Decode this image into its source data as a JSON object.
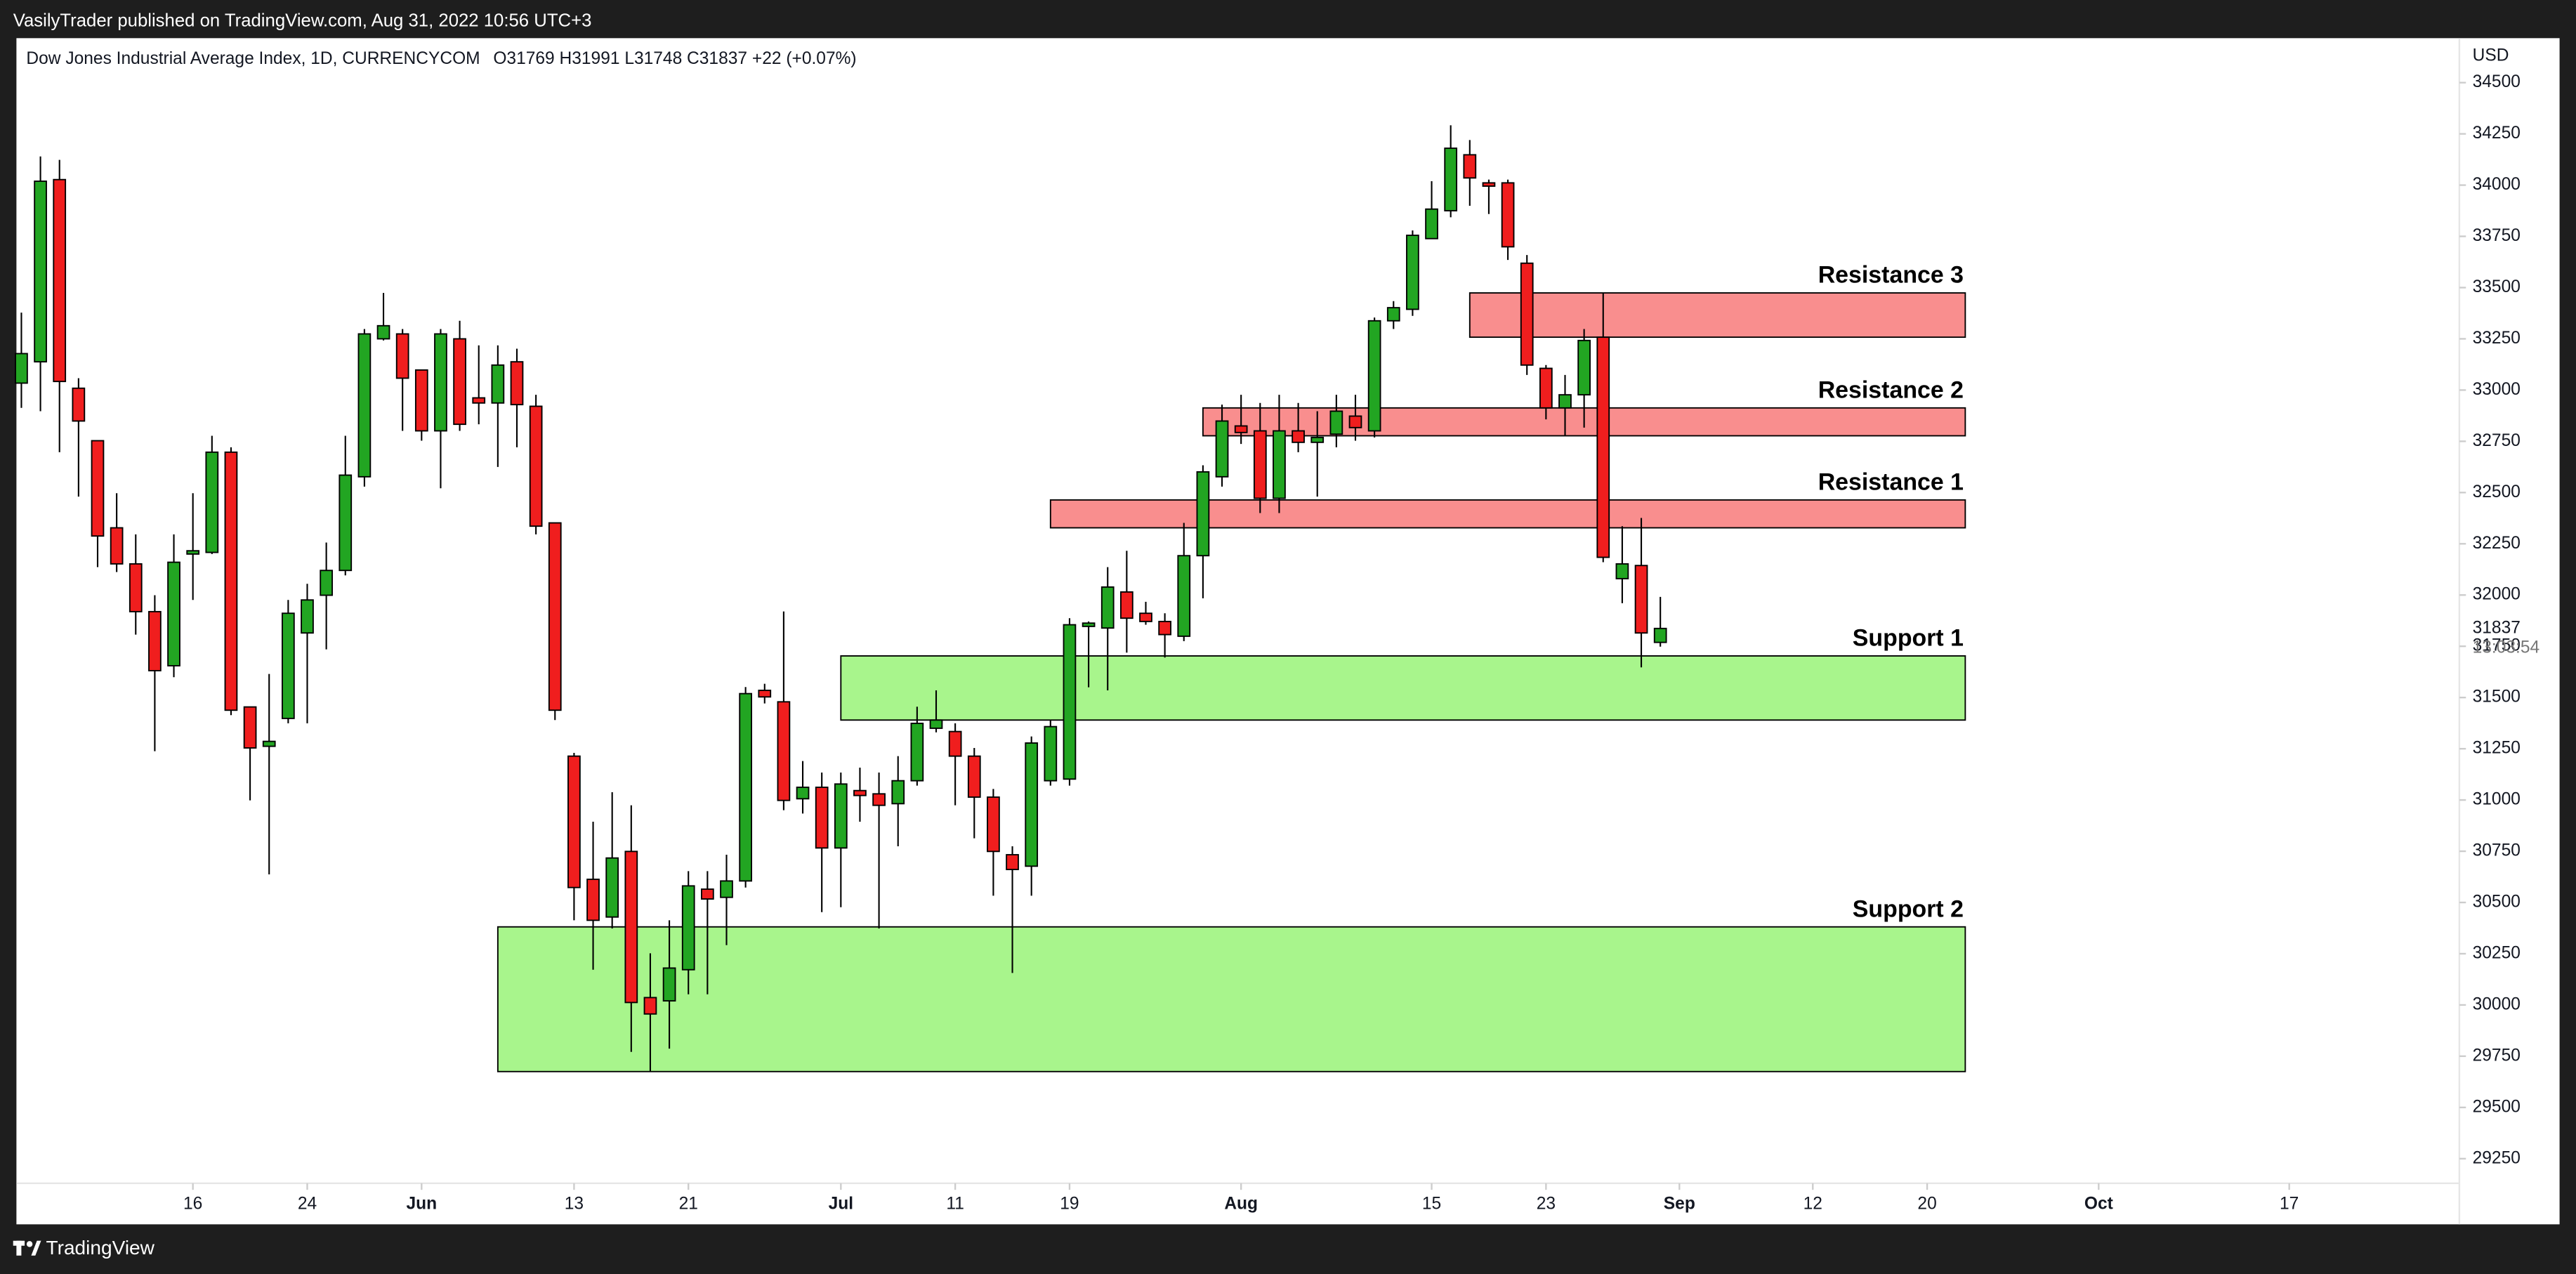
{
  "header": "VasilyTrader published on TradingView.com, Aug 31, 2022 10:56 UTC+3",
  "footer": "TradingView",
  "chart_data": {
    "type": "candlestick",
    "symbol": "Dow Jones Industrial Average Index, 1D, CURRENCYCOM",
    "legend": "O31769  H31991  L31748  C31837  +22 (+0.07%)",
    "currency": "USD",
    "last_price": 31837,
    "countdown": "13:03:54",
    "up_color": "#22a522",
    "down_color": "#f01e1e",
    "x": [
      0,
      1,
      2,
      3,
      4,
      5,
      6,
      7,
      8,
      9,
      10,
      11,
      12,
      13,
      14,
      15,
      16,
      17,
      18,
      19,
      20,
      21,
      22,
      23,
      24,
      25,
      26,
      27,
      28,
      29,
      30,
      31,
      32,
      33,
      34,
      35,
      36,
      37,
      38,
      39,
      40,
      41,
      42,
      43,
      44,
      45,
      46,
      47,
      48,
      49,
      50,
      51,
      52,
      53,
      54,
      55,
      56,
      57,
      58,
      59,
      60,
      61,
      62,
      63,
      64,
      65,
      66,
      67,
      68,
      69,
      70,
      71,
      72,
      73,
      74,
      75,
      76,
      77,
      78,
      79,
      80,
      81,
      82,
      83,
      84,
      85,
      86
    ],
    "open": [
      33034,
      33138,
      34027,
      33009,
      32753,
      32328,
      32152,
      31919,
      31655,
      32200,
      32208,
      32697,
      31454,
      31262,
      31398,
      31815,
      31999,
      32120,
      32577,
      33250,
      33274,
      33098,
      32801,
      33250,
      32962,
      32937,
      33138,
      32921,
      32352,
      31214,
      30613,
      30429,
      30749,
      30036,
      30020,
      30172,
      30565,
      30525,
      30605,
      31535,
      31479,
      31006,
      31062,
      30766,
      31046,
      31030,
      30982,
      31094,
      31350,
      31334,
      31214,
      31014,
      30733,
      30677,
      31094,
      31102,
      31847,
      31839,
      32015,
      31911,
      31871,
      31799,
      32192,
      32577,
      32825,
      32801,
      32472,
      32801,
      32745,
      32785,
      32873,
      32801,
      33338,
      33394,
      33739,
      33875,
      34148,
      34011,
      34011,
      33619,
      33106,
      32913,
      32977,
      33258,
      32080,
      32144,
      31769
    ],
    "high": [
      33378,
      34140,
      34123,
      33058,
      32753,
      32497,
      32296,
      31999,
      32296,
      32497,
      32777,
      32721,
      31454,
      31615,
      31976,
      32055,
      32256,
      32777,
      33298,
      33474,
      33298,
      33098,
      33298,
      33338,
      33218,
      33218,
      33202,
      32977,
      32352,
      31230,
      30894,
      31038,
      30974,
      30252,
      30413,
      30653,
      30653,
      30733,
      31551,
      31567,
      31920,
      31190,
      31134,
      31134,
      31158,
      31134,
      31214,
      31455,
      31535,
      31374,
      31254,
      31054,
      30774,
      31310,
      31390,
      31887,
      31871,
      32136,
      32216,
      31967,
      31911,
      32352,
      32633,
      32929,
      32977,
      32937,
      32977,
      32937,
      32897,
      32977,
      32977,
      33354,
      33434,
      33779,
      34019,
      34292,
      34220,
      34027,
      34027,
      33659,
      33122,
      33074,
      33298,
      33474,
      32336,
      32376,
      31991
    ],
    "low": [
      32913,
      32897,
      32697,
      32480,
      32136,
      32112,
      31807,
      31238,
      31599,
      31976,
      32200,
      31414,
      30998,
      30637,
      31374,
      31374,
      31735,
      32096,
      32529,
      33242,
      32801,
      32753,
      32521,
      32801,
      32833,
      32625,
      32721,
      32296,
      31390,
      30413,
      30172,
      30373,
      29771,
      29675,
      29787,
      30052,
      30052,
      30292,
      30573,
      31471,
      30950,
      30934,
      30453,
      30477,
      30894,
      30373,
      30774,
      31070,
      31330,
      30974,
      30813,
      30533,
      30156,
      30533,
      31070,
      31070,
      31550,
      31535,
      31719,
      31855,
      31695,
      31775,
      31984,
      32529,
      32737,
      32400,
      32400,
      32697,
      32480,
      32721,
      32753,
      32769,
      33298,
      33362,
      33739,
      33843,
      33899,
      33859,
      33635,
      33074,
      32857,
      32777,
      32817,
      32160,
      31960,
      31647,
      31748
    ],
    "close": [
      33178,
      34019,
      33042,
      32849,
      32288,
      32152,
      31919,
      31631,
      32160,
      32216,
      32697,
      31438,
      31254,
      31286,
      31911,
      31976,
      32120,
      32585,
      33274,
      33314,
      33058,
      32801,
      33274,
      32833,
      32937,
      33122,
      32929,
      32336,
      31438,
      30573,
      30413,
      30717,
      30012,
      29956,
      30180,
      30581,
      30517,
      30605,
      31519,
      31503,
      30998,
      31062,
      30766,
      31078,
      31022,
      30974,
      31094,
      31374,
      31390,
      31214,
      31014,
      30749,
      30661,
      31278,
      31358,
      31855,
      31863,
      32039,
      31887,
      31871,
      31807,
      32192,
      32601,
      32849,
      32793,
      32472,
      32801,
      32745,
      32769,
      32897,
      32817,
      33338,
      33402,
      33755,
      33883,
      34180,
      34035,
      33995,
      33699,
      33122,
      32913,
      32977,
      33242,
      32184,
      32152,
      31815,
      31837
    ],
    "zones": [
      {
        "label": "Resistance 3",
        "low": 33258,
        "high": 33474,
        "x_start": 76,
        "x_end": 102,
        "color": "#f98e8e"
      },
      {
        "label": "Resistance 2",
        "low": 32777,
        "high": 32913,
        "x_start": 62,
        "x_end": 102,
        "color": "#f98e8e"
      },
      {
        "label": "Resistance 1",
        "low": 32328,
        "high": 32464,
        "x_start": 54,
        "x_end": 102,
        "color": "#f98e8e"
      },
      {
        "label": "Support 1",
        "low": 31390,
        "high": 31703,
        "x_start": 43,
        "x_end": 102,
        "color": "#a8f58c"
      },
      {
        "label": "Support 2",
        "low": 29675,
        "high": 30381,
        "x_start": 25,
        "x_end": 102,
        "color": "#a8f58c"
      }
    ],
    "xlim": [
      -0.26,
      127.84
    ],
    "xticks": [
      {
        "value": 9,
        "label": "16"
      },
      {
        "value": 15,
        "label": "24"
      },
      {
        "value": 21,
        "label": "Jun"
      },
      {
        "value": 29,
        "label": "13"
      },
      {
        "value": 35,
        "label": "21"
      },
      {
        "value": 43,
        "label": "Jul"
      },
      {
        "value": 49,
        "label": "11"
      },
      {
        "value": 55,
        "label": "19"
      },
      {
        "value": 64,
        "label": "Aug"
      },
      {
        "value": 74,
        "label": "15"
      },
      {
        "value": 80,
        "label": "23"
      },
      {
        "value": 87,
        "label": "Sep"
      },
      {
        "value": 94,
        "label": "12"
      },
      {
        "value": 100,
        "label": "20"
      },
      {
        "value": 109,
        "label": "Oct"
      },
      {
        "value": 119,
        "label": "17"
      }
    ],
    "ylim": [
      29130,
      34717
    ],
    "yticks": [
      29250,
      29500,
      29750,
      30000,
      30250,
      30500,
      30750,
      31000,
      31250,
      31500,
      31750,
      32000,
      32250,
      32500,
      32750,
      33000,
      33250,
      33500,
      33750,
      34000,
      34250,
      34500
    ]
  }
}
